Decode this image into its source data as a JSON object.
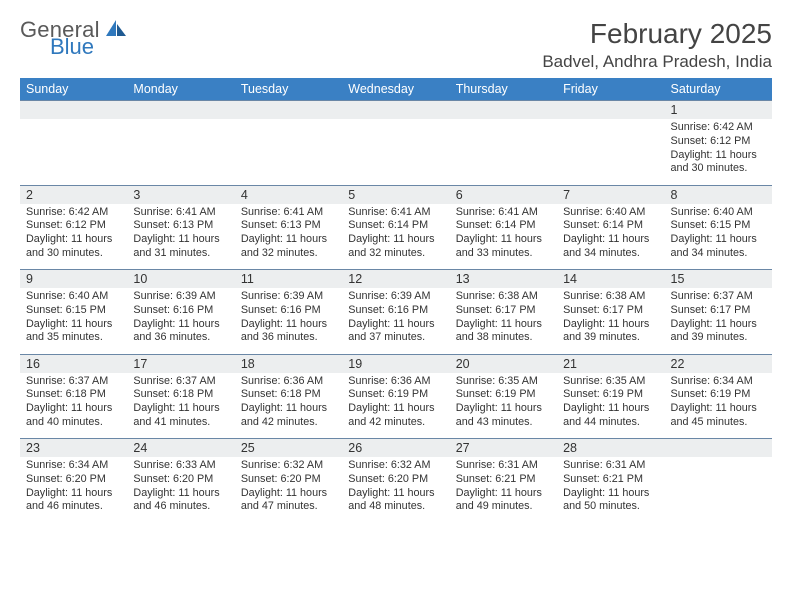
{
  "brand": {
    "word1": "General",
    "word2": "Blue"
  },
  "header": {
    "title": "February 2025",
    "location": "Badvel, Andhra Pradesh, India"
  },
  "colors": {
    "header_bg": "#3a80c4",
    "daynum_bg": "#eceeef",
    "rule": "#6a87a6",
    "text": "#333333"
  },
  "day_names": [
    "Sunday",
    "Monday",
    "Tuesday",
    "Wednesday",
    "Thursday",
    "Friday",
    "Saturday"
  ],
  "weeks": [
    [
      null,
      null,
      null,
      null,
      null,
      null,
      {
        "n": "1",
        "sr": "6:42 AM",
        "ss": "6:12 PM",
        "dl": "11 hours and 30 minutes."
      }
    ],
    [
      {
        "n": "2",
        "sr": "6:42 AM",
        "ss": "6:12 PM",
        "dl": "11 hours and 30 minutes."
      },
      {
        "n": "3",
        "sr": "6:41 AM",
        "ss": "6:13 PM",
        "dl": "11 hours and 31 minutes."
      },
      {
        "n": "4",
        "sr": "6:41 AM",
        "ss": "6:13 PM",
        "dl": "11 hours and 32 minutes."
      },
      {
        "n": "5",
        "sr": "6:41 AM",
        "ss": "6:14 PM",
        "dl": "11 hours and 32 minutes."
      },
      {
        "n": "6",
        "sr": "6:41 AM",
        "ss": "6:14 PM",
        "dl": "11 hours and 33 minutes."
      },
      {
        "n": "7",
        "sr": "6:40 AM",
        "ss": "6:14 PM",
        "dl": "11 hours and 34 minutes."
      },
      {
        "n": "8",
        "sr": "6:40 AM",
        "ss": "6:15 PM",
        "dl": "11 hours and 34 minutes."
      }
    ],
    [
      {
        "n": "9",
        "sr": "6:40 AM",
        "ss": "6:15 PM",
        "dl": "11 hours and 35 minutes."
      },
      {
        "n": "10",
        "sr": "6:39 AM",
        "ss": "6:16 PM",
        "dl": "11 hours and 36 minutes."
      },
      {
        "n": "11",
        "sr": "6:39 AM",
        "ss": "6:16 PM",
        "dl": "11 hours and 36 minutes."
      },
      {
        "n": "12",
        "sr": "6:39 AM",
        "ss": "6:16 PM",
        "dl": "11 hours and 37 minutes."
      },
      {
        "n": "13",
        "sr": "6:38 AM",
        "ss": "6:17 PM",
        "dl": "11 hours and 38 minutes."
      },
      {
        "n": "14",
        "sr": "6:38 AM",
        "ss": "6:17 PM",
        "dl": "11 hours and 39 minutes."
      },
      {
        "n": "15",
        "sr": "6:37 AM",
        "ss": "6:17 PM",
        "dl": "11 hours and 39 minutes."
      }
    ],
    [
      {
        "n": "16",
        "sr": "6:37 AM",
        "ss": "6:18 PM",
        "dl": "11 hours and 40 minutes."
      },
      {
        "n": "17",
        "sr": "6:37 AM",
        "ss": "6:18 PM",
        "dl": "11 hours and 41 minutes."
      },
      {
        "n": "18",
        "sr": "6:36 AM",
        "ss": "6:18 PM",
        "dl": "11 hours and 42 minutes."
      },
      {
        "n": "19",
        "sr": "6:36 AM",
        "ss": "6:19 PM",
        "dl": "11 hours and 42 minutes."
      },
      {
        "n": "20",
        "sr": "6:35 AM",
        "ss": "6:19 PM",
        "dl": "11 hours and 43 minutes."
      },
      {
        "n": "21",
        "sr": "6:35 AM",
        "ss": "6:19 PM",
        "dl": "11 hours and 44 minutes."
      },
      {
        "n": "22",
        "sr": "6:34 AM",
        "ss": "6:19 PM",
        "dl": "11 hours and 45 minutes."
      }
    ],
    [
      {
        "n": "23",
        "sr": "6:34 AM",
        "ss": "6:20 PM",
        "dl": "11 hours and 46 minutes."
      },
      {
        "n": "24",
        "sr": "6:33 AM",
        "ss": "6:20 PM",
        "dl": "11 hours and 46 minutes."
      },
      {
        "n": "25",
        "sr": "6:32 AM",
        "ss": "6:20 PM",
        "dl": "11 hours and 47 minutes."
      },
      {
        "n": "26",
        "sr": "6:32 AM",
        "ss": "6:20 PM",
        "dl": "11 hours and 48 minutes."
      },
      {
        "n": "27",
        "sr": "6:31 AM",
        "ss": "6:21 PM",
        "dl": "11 hours and 49 minutes."
      },
      {
        "n": "28",
        "sr": "6:31 AM",
        "ss": "6:21 PM",
        "dl": "11 hours and 50 minutes."
      },
      null
    ]
  ],
  "labels": {
    "sunrise": "Sunrise:",
    "sunset": "Sunset:",
    "daylight": "Daylight:"
  }
}
